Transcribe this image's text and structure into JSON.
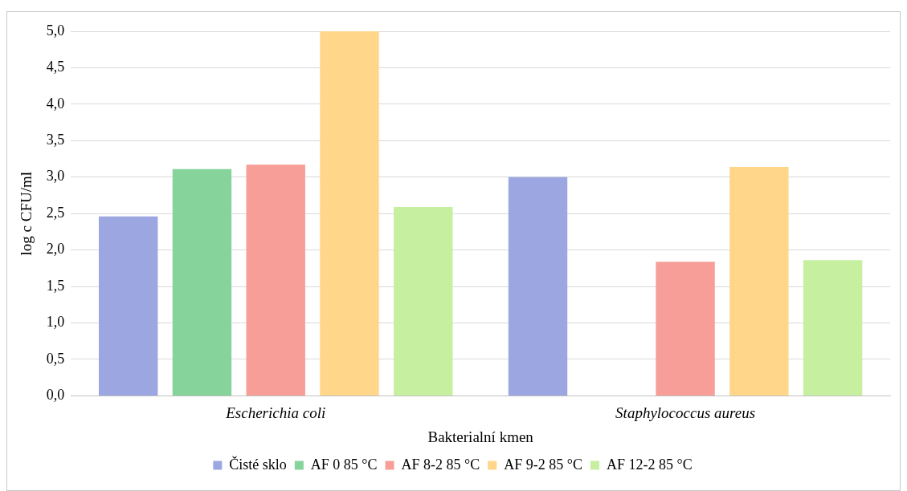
{
  "chart_data": {
    "type": "bar",
    "xlabel": "Bakterialní kmen",
    "ylabel": "log c CFU/ml",
    "categories": [
      "Escherichia coli",
      "Staphylococcus aureus"
    ],
    "series": [
      {
        "name": "Čisté sklo",
        "color": "#9ca6e0",
        "values": [
          2.46,
          3.0
        ]
      },
      {
        "name": "AF 0 85 °C",
        "color": "#86d49c",
        "values": [
          3.11,
          null
        ]
      },
      {
        "name": "AF 8-2 85 °C",
        "color": "#f89e98",
        "values": [
          3.17,
          1.84
        ]
      },
      {
        "name": "AF 9-2 85 °C",
        "color": "#ffd68a",
        "values": [
          5.0,
          3.14
        ]
      },
      {
        "name": "AF 12-2 85 °C",
        "color": "#c6f0a0",
        "values": [
          2.59,
          1.86
        ]
      }
    ],
    "ylim": [
      0,
      5
    ],
    "yticks": [
      {
        "value": 0,
        "label": "0,0"
      },
      {
        "value": 0.5,
        "label": "0,5"
      },
      {
        "value": 1,
        "label": "1,0"
      },
      {
        "value": 1.5,
        "label": "1,5"
      },
      {
        "value": 2,
        "label": "2,0"
      },
      {
        "value": 2.5,
        "label": "2,5"
      },
      {
        "value": 3,
        "label": "3,0"
      },
      {
        "value": 3.5,
        "label": "3,5"
      },
      {
        "value": 4,
        "label": "4,0"
      },
      {
        "value": 4.5,
        "label": "4,5"
      },
      {
        "value": 5,
        "label": "5,0"
      }
    ],
    "grid": "y",
    "legend": "bottom"
  }
}
